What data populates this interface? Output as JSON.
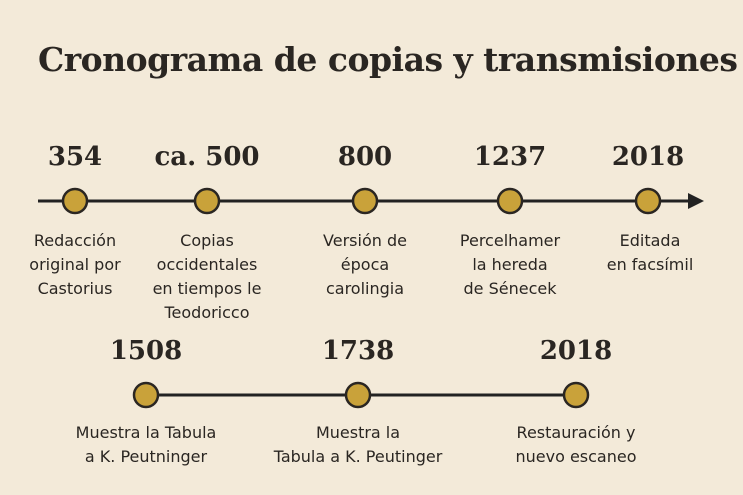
{
  "title": "Cronograma de copias y transmisiones",
  "colors": {
    "background": "#f3ead9",
    "line": "#222222",
    "marker_fill": "#c9a23a",
    "marker_stroke": "#2a2622"
  },
  "rows": [
    {
      "arrow": true,
      "events": [
        {
          "year": "354",
          "desc": "Redacción\noriginal por\nCastorius"
        },
        {
          "year": "ca. 500",
          "desc": "Copias\noccidentales\nen tiempos le\nTeodoricco"
        },
        {
          "year": "800",
          "desc": "Versión de\népoca\ncarolingia"
        },
        {
          "year": "1237",
          "desc": "Percelhamer\nla hereda\nde Sénecek"
        },
        {
          "year": "2018",
          "desc": "Editada\nen facsímil"
        }
      ]
    },
    {
      "arrow": false,
      "events": [
        {
          "year": "1508",
          "desc": "Muestra la Tabula\na K. Peutninger"
        },
        {
          "year": "1738",
          "desc": "Muestra la\nTabula a K. Peutinger"
        },
        {
          "year": "2018",
          "desc": "Restauración y\nnuevo escaneo"
        }
      ]
    }
  ]
}
